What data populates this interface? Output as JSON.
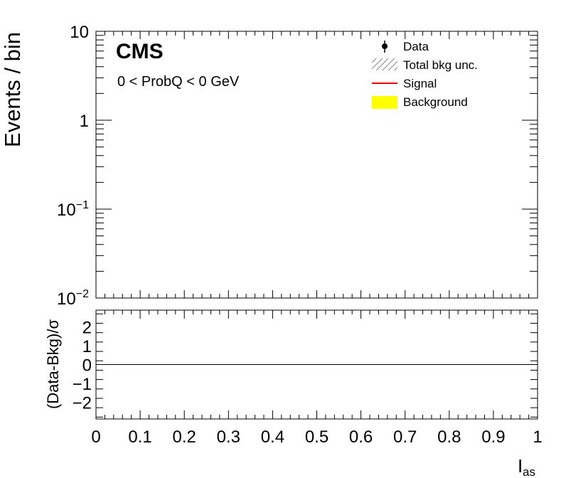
{
  "chart_data": [
    {
      "panel": "main",
      "type": "line",
      "experiment_label": "CMS",
      "annotation": "0 < ProbQ < 0 GeV",
      "ylabel": "Events / bin",
      "xlim": [
        0,
        1
      ],
      "ylim": [
        0.01,
        10
      ],
      "yscale": "log",
      "ytick_labels": [
        {
          "value": 10,
          "base": "10",
          "exp": ""
        },
        {
          "value": 1,
          "base": "1",
          "exp": ""
        },
        {
          "value": 0.1,
          "base": "10",
          "exp": "−1"
        },
        {
          "value": 0.01,
          "base": "10",
          "exp": "−2"
        }
      ],
      "legend_position": "top-right",
      "legend": [
        {
          "label": "Data",
          "style": "marker",
          "color": "#000000"
        },
        {
          "label": "Total bkg unc.",
          "style": "hatch",
          "color": "#000000"
        },
        {
          "label": "Signal",
          "style": "line",
          "color": "#ff0000"
        },
        {
          "label": "Background",
          "style": "fill",
          "color": "#ffff00"
        }
      ],
      "series": []
    },
    {
      "panel": "ratio",
      "type": "line",
      "ylabel": "(Data-Bkg)/σ",
      "xlabel_main": "I",
      "xlabel_sub": "as",
      "xlim": [
        0,
        1
      ],
      "ylim": [
        -2.9,
        2.9
      ],
      "yticks": [
        2,
        1,
        0,
        -1,
        -2
      ],
      "ytick_labels": [
        "2",
        "1",
        "0",
        "−1",
        "−2"
      ],
      "reference_line": 0,
      "xticks": [
        0,
        0.1,
        0.2,
        0.3,
        0.4,
        0.5,
        0.6,
        0.7,
        0.8,
        0.9,
        1
      ],
      "xtick_labels": [
        "0",
        "0.1",
        "0.2",
        "0.3",
        "0.4",
        "0.5",
        "0.6",
        "0.7",
        "0.8",
        "0.9",
        "1"
      ],
      "series": []
    }
  ]
}
